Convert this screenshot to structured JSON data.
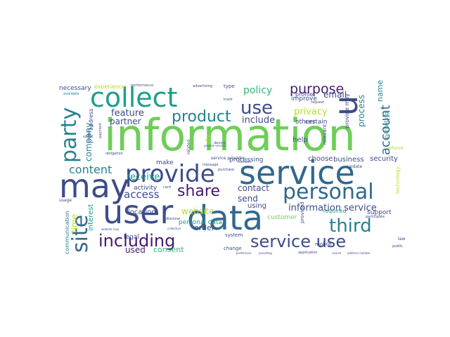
{
  "palette": {
    "purple": "#46196e",
    "indigo": "#3d4c8a",
    "blue": "#31688e",
    "teal": "#26828e",
    "green_teal": "#1f9e89",
    "green": "#35b779",
    "light_green": "#6ece58",
    "lime": "#b5de2b",
    "yellow": "#e0e33a"
  },
  "words": [
    {
      "text": "information",
      "c": "light_green"
    },
    {
      "text": "service",
      "c": "blue"
    },
    {
      "text": "data",
      "c": "blue"
    },
    {
      "text": "user",
      "c": "indigo"
    },
    {
      "text": "may",
      "c": "indigo"
    },
    {
      "text": "collect",
      "c": "green_teal"
    },
    {
      "text": "provide",
      "c": "indigo"
    },
    {
      "text": "personal",
      "c": "blue"
    },
    {
      "text": "third",
      "c": "teal"
    },
    {
      "text": "party",
      "c": "teal"
    },
    {
      "text": "site",
      "c": "blue"
    },
    {
      "text": "including",
      "c": "purple"
    },
    {
      "text": "service use",
      "c": "indigo"
    },
    {
      "text": "use",
      "c": "indigo"
    },
    {
      "text": "u",
      "c": "indigo"
    },
    {
      "text": "share",
      "c": "purple"
    },
    {
      "text": "product",
      "c": "teal"
    },
    {
      "text": "purpose",
      "c": "purple"
    },
    {
      "text": "account",
      "c": "blue"
    },
    {
      "text": "content",
      "c": "teal"
    },
    {
      "text": "access",
      "c": "indigo"
    },
    {
      "text": "information service",
      "c": "indigo"
    },
    {
      "text": "policy",
      "c": "green"
    },
    {
      "text": "include",
      "c": "indigo"
    },
    {
      "text": "privacy",
      "c": "lime"
    },
    {
      "text": "email",
      "c": "indigo"
    },
    {
      "text": "process",
      "c": "teal"
    },
    {
      "text": "name",
      "c": "teal"
    },
    {
      "text": "feature",
      "c": "indigo"
    },
    {
      "text": "partner",
      "c": "indigo"
    },
    {
      "text": "company",
      "c": "teal"
    },
    {
      "text": "receive",
      "c": "green_teal"
    },
    {
      "text": "contact",
      "c": "indigo"
    },
    {
      "text": "send",
      "c": "indigo"
    },
    {
      "text": "website",
      "c": "lime"
    },
    {
      "text": "order",
      "c": "indigo"
    },
    {
      "text": "used",
      "c": "purple"
    },
    {
      "text": "consent",
      "c": "green"
    },
    {
      "text": "time",
      "c": "lime"
    },
    {
      "text": "interest",
      "c": "green_teal"
    },
    {
      "text": "location",
      "c": "indigo"
    },
    {
      "text": "activity",
      "c": "indigo"
    },
    {
      "text": "make",
      "c": "indigo"
    },
    {
      "text": "processing",
      "c": "indigo"
    },
    {
      "text": "using",
      "c": "indigo"
    },
    {
      "text": "business",
      "c": "indigo"
    },
    {
      "text": "security",
      "c": "indigo"
    },
    {
      "text": "choose",
      "c": "indigo"
    },
    {
      "text": "customer",
      "c": "light_green"
    },
    {
      "text": "help",
      "c": "indigo"
    },
    {
      "text": "certain",
      "c": "indigo"
    },
    {
      "text": "others",
      "c": "indigo"
    },
    {
      "text": "improve",
      "c": "indigo"
    },
    {
      "text": "profile",
      "c": "indigo"
    },
    {
      "text": "provide may",
      "c": "indigo"
    },
    {
      "text": "marketing",
      "c": "green_teal"
    },
    {
      "text": "support",
      "c": "indigo"
    },
    {
      "text": "necessary",
      "c": "indigo"
    },
    {
      "text": "experience",
      "c": "lime"
    },
    {
      "text": "communication",
      "c": "teal"
    },
    {
      "text": "legal",
      "c": "indigo"
    },
    {
      "text": "personal data",
      "c": "green_teal"
    },
    {
      "text": "address",
      "c": "indigo"
    },
    {
      "text": "required",
      "c": "green_teal"
    },
    {
      "text": "technology",
      "c": "lime"
    },
    {
      "text": "relevant",
      "c": "indigo"
    },
    {
      "text": "phone",
      "c": "lime"
    },
    {
      "text": "type",
      "c": "indigo"
    },
    {
      "text": "related",
      "c": "indigo"
    },
    {
      "text": "mobile",
      "c": "indigo"
    },
    {
      "text": "system",
      "c": "indigo"
    },
    {
      "text": "change",
      "c": "indigo"
    },
    {
      "text": "application",
      "c": "indigo"
    },
    {
      "text": "service provider",
      "c": "indigo"
    },
    {
      "text": "provided",
      "c": "indigo"
    },
    {
      "text": "public",
      "c": "indigo"
    },
    {
      "text": "available",
      "c": "teal"
    },
    {
      "text": "performance",
      "c": "indigo"
    },
    {
      "text": "browser",
      "c": "indigo"
    },
    {
      "text": "obligation",
      "c": "indigo"
    },
    {
      "text": "request",
      "c": "indigo"
    },
    {
      "text": "social",
      "c": "indigo"
    },
    {
      "text": "purchase",
      "c": "indigo"
    },
    {
      "text": "usage",
      "c": "indigo"
    },
    {
      "text": "website may",
      "c": "indigo"
    },
    {
      "text": "collection",
      "c": "indigo"
    },
    {
      "text": "disclose",
      "c": "indigo"
    },
    {
      "text": "preference",
      "c": "indigo"
    },
    {
      "text": "providing",
      "c": "indigo"
    },
    {
      "text": "course",
      "c": "indigo"
    },
    {
      "text": "address number",
      "c": "indigo"
    },
    {
      "text": "advertising",
      "c": "indigo"
    },
    {
      "text": "participate",
      "c": "indigo"
    },
    {
      "text": "message",
      "c": "indigo"
    },
    {
      "text": "device",
      "c": "indigo"
    },
    {
      "text": "offer",
      "c": "lime"
    },
    {
      "text": "track",
      "c": "indigo"
    },
    {
      "text": "number",
      "c": "indigo"
    },
    {
      "text": "card",
      "c": "indigo"
    },
    {
      "text": "law",
      "c": "indigo"
    },
    {
      "text": "payment",
      "c": "indigo"
    },
    {
      "text": "update",
      "c": "indigo"
    },
    {
      "text": "provide service",
      "c": "indigo"
    }
  ]
}
